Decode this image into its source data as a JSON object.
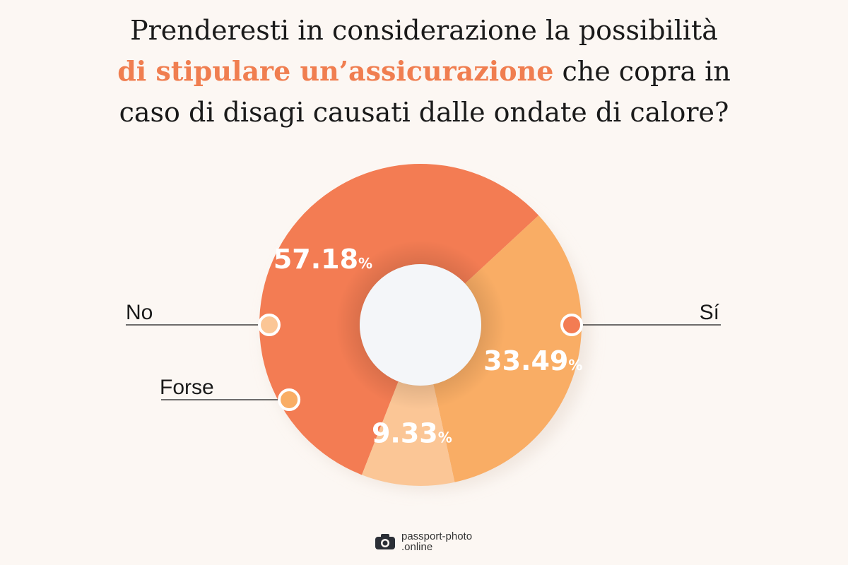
{
  "title": {
    "line1": "Prenderesti in considerazione la possibilità",
    "line2_highlight": "di stipulare un’assicurazione",
    "line2_rest": " che copra in",
    "line3": "caso di disagi causati dalle ondate di calore?"
  },
  "chart_data": {
    "type": "pie",
    "donut": true,
    "slices": [
      {
        "label": "Sí",
        "value": 57.18,
        "display": "57.18",
        "unit": "%",
        "color": "#F37C53"
      },
      {
        "label": "Forse",
        "value": 33.49,
        "display": "33.49",
        "unit": "%",
        "color": "#F9AD65"
      },
      {
        "label": "No",
        "value": 9.33,
        "display": "9.33",
        "unit": "%",
        "color": "#FBC696"
      }
    ],
    "center_color": "#F4F6F9",
    "legend": "callout labels left and right"
  },
  "footer": {
    "brand_line1": "passport-photo",
    "brand_line2": ".online",
    "logo_icon": "camera-icon"
  }
}
